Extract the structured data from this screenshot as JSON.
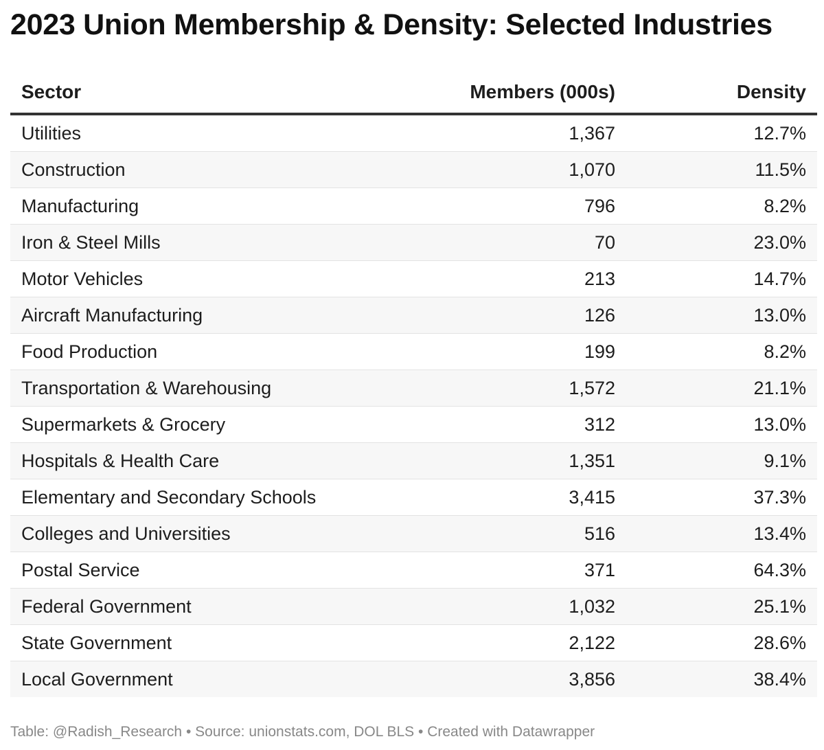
{
  "chart_data": {
    "type": "table",
    "title": "2023 Union Membership & Density: Selected Industries",
    "columns": [
      "Sector",
      "Members (000s)",
      "Density"
    ],
    "rows": [
      {
        "sector": "Utilities",
        "members": "1,367",
        "density": "12.7%"
      },
      {
        "sector": "Construction",
        "members": "1,070",
        "density": "11.5%"
      },
      {
        "sector": "Manufacturing",
        "members": "796",
        "density": "8.2%"
      },
      {
        "sector": "Iron & Steel Mills",
        "members": "70",
        "density": "23.0%"
      },
      {
        "sector": "Motor Vehicles",
        "members": "213",
        "density": "14.7%"
      },
      {
        "sector": "Aircraft Manufacturing",
        "members": "126",
        "density": "13.0%"
      },
      {
        "sector": "Food Production",
        "members": "199",
        "density": "8.2%"
      },
      {
        "sector": "Transportation & Warehousing",
        "members": "1,572",
        "density": "21.1%"
      },
      {
        "sector": "Supermarkets & Grocery",
        "members": "312",
        "density": "13.0%"
      },
      {
        "sector": "Hospitals & Health Care",
        "members": "1,351",
        "density": "9.1%"
      },
      {
        "sector": "Elementary and Secondary Schools",
        "members": "3,415",
        "density": "37.3%"
      },
      {
        "sector": "Colleges and Universities",
        "members": "516",
        "density": "13.4%"
      },
      {
        "sector": "Postal Service",
        "members": "371",
        "density": "64.3%"
      },
      {
        "sector": "Federal Government",
        "members": "1,032",
        "density": "25.1%"
      },
      {
        "sector": "State Government",
        "members": "2,122",
        "density": "28.6%"
      },
      {
        "sector": "Local Government",
        "members": "3,856",
        "density": "38.4%"
      }
    ],
    "footer": "Table: @Radish_Research • Source: unionstats.com, DOL BLS • Created with Datawrapper"
  }
}
